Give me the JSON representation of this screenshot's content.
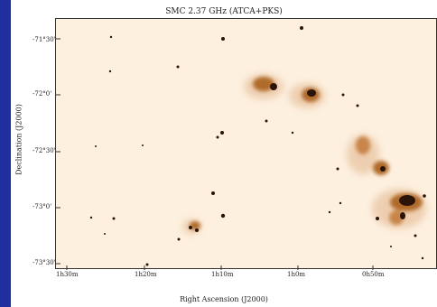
{
  "figure": {
    "title": "SMC 2.37 GHz (ATCA+PKS)",
    "xlabel": "Right Ascension (J2000)",
    "ylabel": "Declination (J2000)",
    "yticks": [
      "-71°30'",
      "-72°0'",
      "-72°30'",
      "-73°0'",
      "-73°30'"
    ],
    "xticks": [
      "1h30m",
      "1h20m",
      "1h10m",
      "1h0m",
      "0h50m"
    ]
  },
  "colors": {
    "background": "#1f2fa0",
    "plot_bg": "#fdf0df",
    "emission_dark": "#2a140a",
    "emission_mid": "#b06a2a",
    "emission_light": "#e2b48a"
  }
}
